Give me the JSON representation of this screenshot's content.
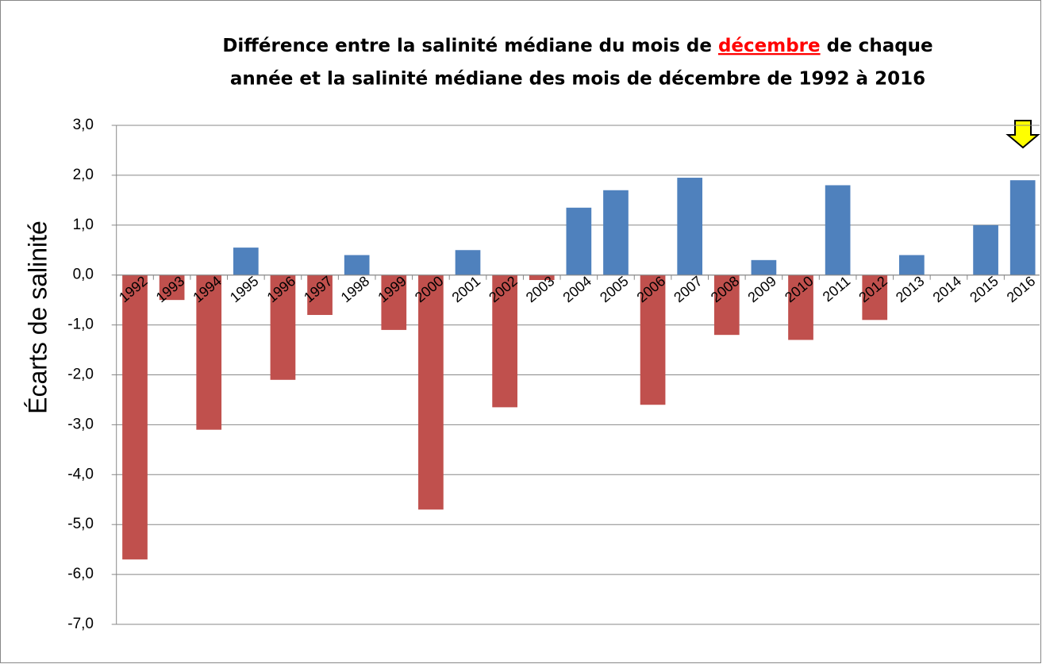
{
  "chart_data": {
    "type": "bar",
    "title_parts": [
      "Différence entre la salinité médiane du mois de ",
      "décembre",
      " de chaque",
      "année et  la salinité médiane des mois de décembre de 1992 à 2016"
    ],
    "y_label": "Écarts  de  salinité",
    "categories": [
      "1992",
      "1993",
      "1994",
      "1995",
      "1996",
      "1997",
      "1998",
      "1999",
      "2000",
      "2001",
      "2002",
      "2003",
      "2004",
      "2005",
      "2006",
      "2007",
      "2008",
      "2009",
      "2010",
      "2011",
      "2012",
      "2013",
      "2014",
      "2015",
      "2016"
    ],
    "values": [
      -5.7,
      -0.5,
      -3.1,
      0.55,
      -2.1,
      -0.8,
      0.4,
      -1.1,
      -4.7,
      0.5,
      -2.65,
      -0.1,
      1.35,
      1.7,
      -2.6,
      1.95,
      -1.2,
      0.3,
      -1.3,
      1.8,
      -0.9,
      0.4,
      0,
      1.0,
      1.9
    ],
    "positive_color": "#4f81bd",
    "negative_color": "#c0504d",
    "highlight_color": "#ff0000",
    "ylim": [
      -7,
      3
    ],
    "yticks": [
      {
        "value": 3,
        "label": "3,0"
      },
      {
        "value": 2,
        "label": "2,0"
      },
      {
        "value": 1,
        "label": "1,0"
      },
      {
        "value": 0,
        "label": "0,0"
      },
      {
        "value": -1,
        "label": "-1,0"
      },
      {
        "value": -2,
        "label": "-2,0"
      },
      {
        "value": -3,
        "label": "-3,0"
      },
      {
        "value": -4,
        "label": "-4,0"
      },
      {
        "value": -5,
        "label": "-5,0"
      },
      {
        "value": -6,
        "label": "-6,0"
      },
      {
        "value": -7,
        "label": "-7,0"
      }
    ],
    "grid": true
  }
}
